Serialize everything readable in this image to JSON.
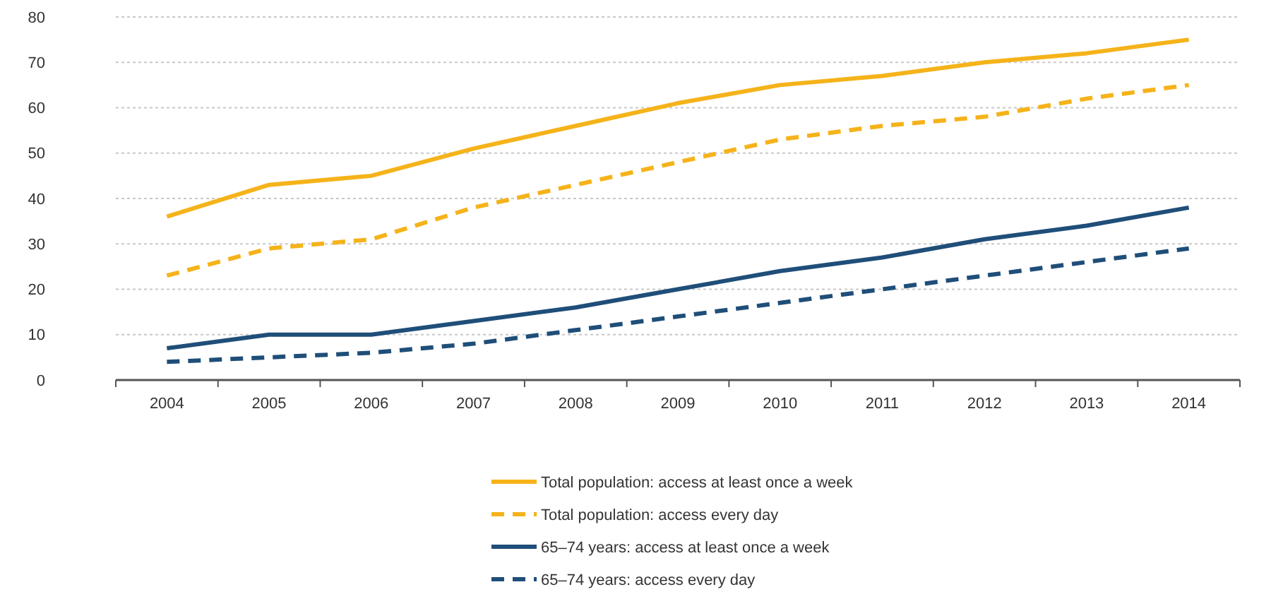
{
  "chart_data": {
    "type": "line",
    "categories": [
      "2004",
      "2005",
      "2006",
      "2007",
      "2008",
      "2009",
      "2010",
      "2011",
      "2012",
      "2013",
      "2014"
    ],
    "series": [
      {
        "name": "Total population: access at least once a week",
        "color": "#f5b31a",
        "line_style": "solid",
        "values": [
          36,
          43,
          45,
          51,
          56,
          61,
          65,
          67,
          70,
          72,
          75
        ]
      },
      {
        "name": "Total population: access every day",
        "color": "#f5b31a",
        "line_style": "dashed",
        "values": [
          23,
          29,
          31,
          38,
          43,
          48,
          53,
          56,
          58,
          62,
          65
        ]
      },
      {
        "name": "65–74 years: access at least once a week",
        "color": "#1f4e79",
        "line_style": "solid",
        "values": [
          7,
          10,
          10,
          13,
          16,
          20,
          24,
          27,
          31,
          34,
          38
        ]
      },
      {
        "name": "65–74 years: access every day",
        "color": "#1f4e79",
        "line_style": "dashed",
        "values": [
          4,
          5,
          6,
          8,
          11,
          14,
          17,
          20,
          23,
          26,
          29
        ]
      }
    ],
    "ylim": [
      0,
      80
    ],
    "yticks": [
      0,
      10,
      20,
      30,
      40,
      50,
      60,
      70,
      80
    ],
    "grid": "y",
    "legend": "bottom",
    "marker": "none"
  }
}
